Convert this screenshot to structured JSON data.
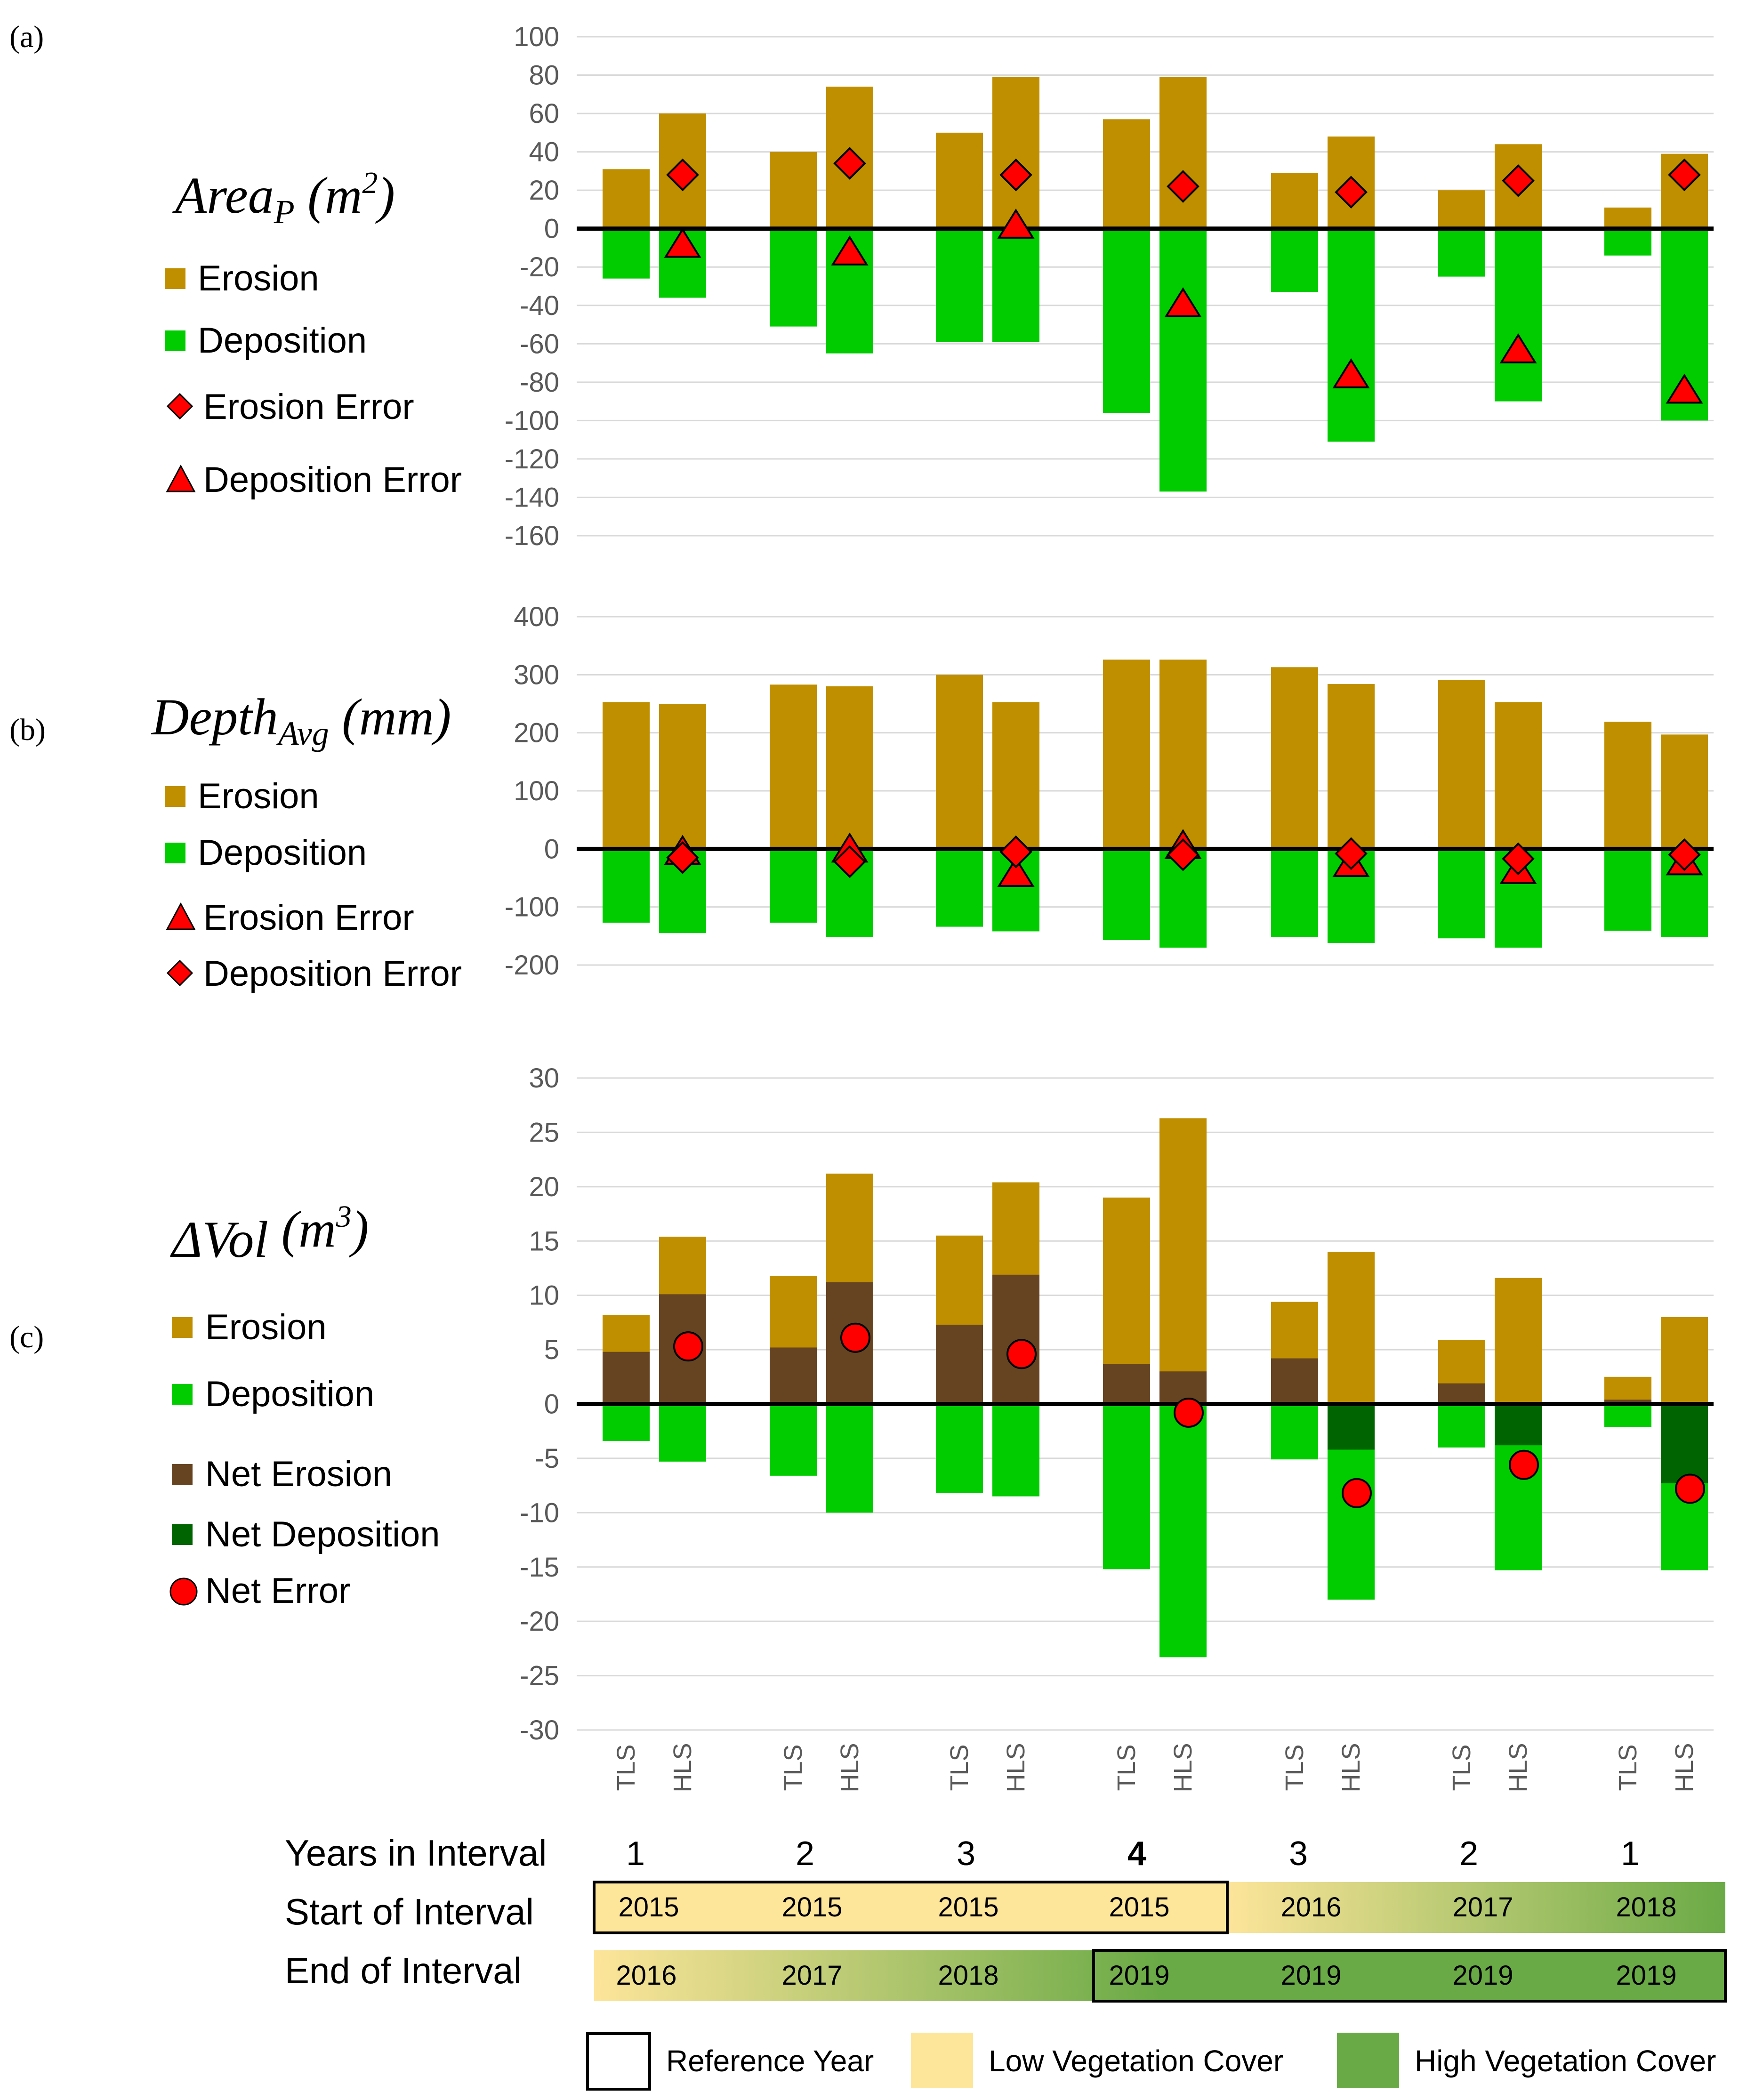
{
  "chart_data": [
    {
      "panel_label": "(a)",
      "title": "Area",
      "title_sub": "P",
      "title_unit_open": " (m",
      "title_unit_sup": "2",
      "title_unit_close": ")",
      "type": "bar",
      "ylim": [
        -160,
        100
      ],
      "yticks": [
        100,
        80,
        60,
        40,
        20,
        0,
        -20,
        -40,
        -60,
        -80,
        -100,
        -120,
        -140,
        -160
      ],
      "legend": [
        "Erosion",
        "Deposition",
        "Erosion Error",
        "Deposition Error"
      ],
      "erosion": [
        31,
        60,
        40,
        74,
        50,
        79,
        57,
        79,
        29,
        48,
        20,
        44,
        11,
        39
      ],
      "deposition": [
        -26,
        -36,
        -51,
        -65,
        -59,
        -59,
        -96,
        -137,
        -33,
        -111,
        -25,
        -90,
        -14,
        -100
      ],
      "erosion_error": [
        null,
        28,
        null,
        34,
        null,
        28,
        null,
        22,
        null,
        19,
        null,
        25,
        null,
        28
      ],
      "deposition_error": [
        null,
        -9,
        null,
        -13,
        null,
        1,
        null,
        -40,
        null,
        -77,
        null,
        -64,
        null,
        -85
      ]
    },
    {
      "panel_label": "(b)",
      "title": "Depth",
      "title_sub": "Avg",
      "title_unit_open": " (mm)",
      "title_unit_sup": "",
      "title_unit_close": "",
      "type": "bar",
      "ylim": [
        -200,
        400
      ],
      "yticks": [
        400,
        300,
        200,
        100,
        0,
        -100,
        -200
      ],
      "legend": [
        "Erosion",
        "Deposition",
        "Erosion Error",
        "Deposition Error"
      ],
      "erosion": [
        253,
        250,
        283,
        280,
        300,
        253,
        326,
        326,
        313,
        284,
        291,
        253,
        219,
        197
      ],
      "deposition": [
        -127,
        -145,
        -127,
        -152,
        -134,
        -142,
        -157,
        -170,
        -152,
        -162,
        -154,
        -170,
        -141,
        -152
      ],
      "erosion_error": [
        null,
        -7,
        null,
        -3,
        null,
        -45,
        null,
        3,
        null,
        -28,
        null,
        -40,
        null,
        -25
      ],
      "deposition_error": [
        null,
        -15,
        null,
        -22,
        null,
        -5,
        null,
        -10,
        null,
        -8,
        null,
        -17,
        null,
        -10
      ]
    },
    {
      "panel_label": "(c)",
      "title": "ΔVol",
      "title_sub": "",
      "title_unit_open": " (m",
      "title_unit_sup": "3",
      "title_unit_close": ")",
      "type": "bar",
      "ylim": [
        -30,
        30
      ],
      "yticks": [
        30,
        25,
        20,
        15,
        10,
        5,
        0,
        -5,
        -10,
        -15,
        -20,
        -25,
        -30
      ],
      "legend": [
        "Erosion",
        "Deposition",
        "Net Erosion",
        "Net Deposition",
        "Net Error"
      ],
      "erosion": [
        8.2,
        15.4,
        11.8,
        21.2,
        15.5,
        20.4,
        19.0,
        26.3,
        9.4,
        14.0,
        5.9,
        11.6,
        2.5,
        8.0
      ],
      "deposition": [
        -3.4,
        -5.3,
        -6.6,
        -10.0,
        -8.2,
        -8.5,
        -15.2,
        -23.3,
        -5.1,
        -18.0,
        -4.0,
        -15.3,
        -2.1,
        -15.3
      ],
      "net": [
        4.8,
        10.1,
        5.2,
        11.2,
        7.3,
        11.9,
        3.7,
        3.0,
        4.2,
        -4.2,
        1.9,
        -3.8,
        0.4,
        -7.3
      ],
      "net_error": [
        null,
        5.3,
        null,
        6.1,
        null,
        4.6,
        null,
        -0.8,
        null,
        -8.2,
        null,
        -5.6,
        null,
        -7.8
      ]
    }
  ],
  "categories": [
    "TLS",
    "HLS",
    "TLS",
    "HLS",
    "TLS",
    "HLS",
    "TLS",
    "HLS",
    "TLS",
    "HLS",
    "TLS",
    "HLS",
    "TLS",
    "HLS"
  ],
  "table": {
    "years_label": "Years in Interval",
    "start_label": "Start of Interval",
    "end_label": "End of Interval",
    "years": [
      "1",
      "2",
      "3",
      "4",
      "3",
      "2",
      "1"
    ],
    "start": [
      "2015",
      "2015",
      "2015",
      "2015",
      "2016",
      "2017",
      "2018"
    ],
    "end": [
      "2016",
      "2017",
      "2018",
      "2019",
      "2019",
      "2019",
      "2019"
    ]
  },
  "key": {
    "reference": "Reference Year",
    "low": "Low Vegetation Cover",
    "high": "High Vegetation Cover"
  },
  "colors": {
    "erosion": "#bf8f00",
    "deposition": "#00cc00",
    "net_erosion": "#664422",
    "net_deposition": "#006400",
    "error": "#ff0000",
    "low_veg": "#fde59a",
    "high_veg": "#6aaa46"
  }
}
